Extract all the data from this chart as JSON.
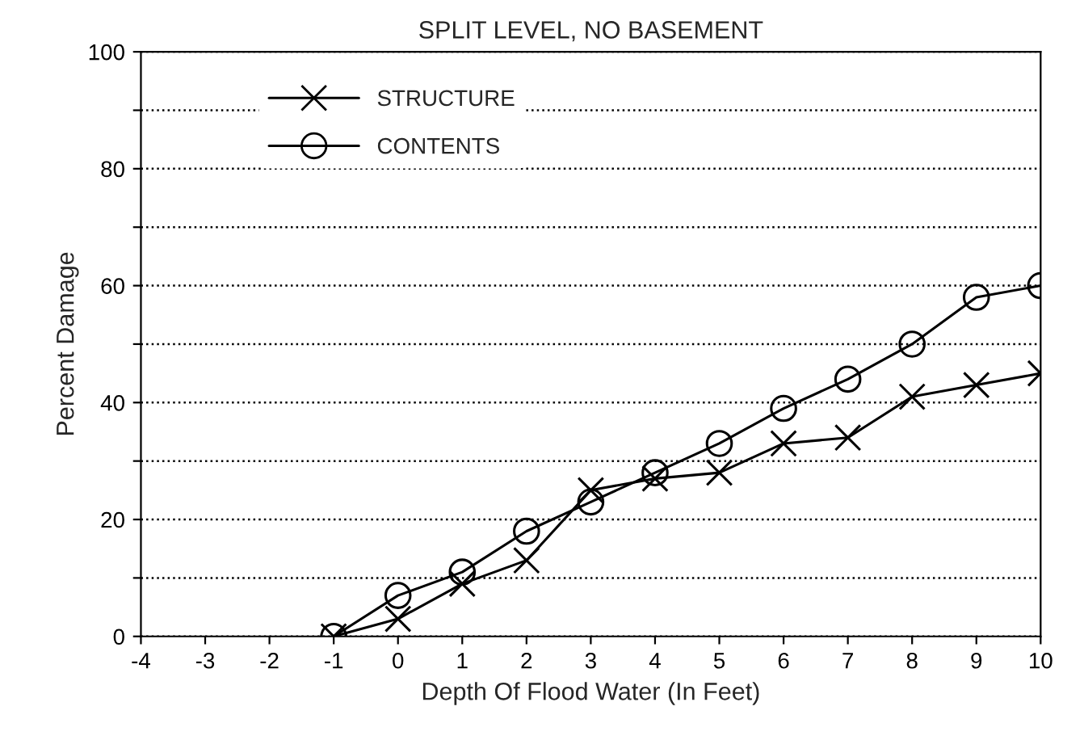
{
  "chart_data": {
    "type": "line",
    "title": "SPLIT LEVEL, NO BASEMENT",
    "xlabel": "Depth Of Flood Water (In Feet)",
    "ylabel": "Percent Damage",
    "x": [
      -1,
      0,
      1,
      2,
      3,
      4,
      5,
      6,
      7,
      8,
      9,
      10
    ],
    "series": [
      {
        "name": "STRUCTURE",
        "color": "#000000",
        "marker": "cross",
        "values": [
          0,
          3,
          9,
          13,
          25,
          27,
          28,
          33,
          34,
          41,
          43,
          45
        ]
      },
      {
        "name": "CONTENTS",
        "color": "#000000",
        "marker": "circle",
        "values": [
          0,
          7,
          11,
          18,
          23,
          28,
          33,
          39,
          44,
          50,
          58,
          60
        ]
      }
    ],
    "xlim": [
      -4,
      10
    ],
    "xticks": [
      -4,
      -3,
      -2,
      -1,
      0,
      1,
      2,
      3,
      4,
      5,
      6,
      7,
      8,
      9,
      10
    ],
    "ylim": [
      0,
      100
    ],
    "yticks": [
      0,
      {
        "value": 10,
        "label": null
      },
      20,
      {
        "value": 30,
        "label": null
      },
      40,
      {
        "value": 50,
        "label": null
      },
      60,
      {
        "value": 70,
        "label": null
      },
      80,
      {
        "value": 90,
        "label": null
      },
      100
    ],
    "grid": "y",
    "legend": "top left",
    "line_style": "solid"
  }
}
